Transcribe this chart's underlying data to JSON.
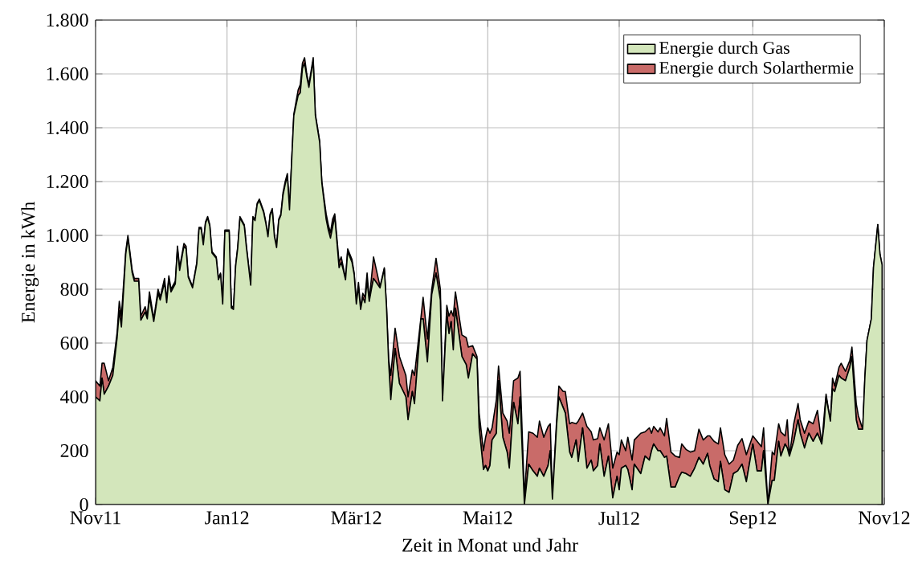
{
  "chart_data": {
    "type": "area",
    "stacked": true,
    "xlabel": "Zeit in Monat und Jahr",
    "ylabel": "Energie in kWh",
    "xlim": [
      "2011-11-01",
      "2012-11-01"
    ],
    "xticks": [
      {
        "value": "2011-11-01",
        "label": "Nov11"
      },
      {
        "value": "2012-01-01",
        "label": "Jan12"
      },
      {
        "value": "2012-03-01",
        "label": "Mär12"
      },
      {
        "value": "2012-05-01",
        "label": "Mai12"
      },
      {
        "value": "2012-07-01",
        "label": "Jul12"
      },
      {
        "value": "2012-09-01",
        "label": "Sep12"
      },
      {
        "value": "2012-11-01",
        "label": "Nov12"
      }
    ],
    "ylim": [
      0,
      1800
    ],
    "yticks": [
      0,
      200,
      400,
      600,
      800,
      {
        "value": 1000,
        "label": "1.000"
      },
      {
        "value": 1200,
        "label": "1.200"
      },
      {
        "value": 1400,
        "label": "1.400"
      },
      {
        "value": 1600,
        "label": "1.600"
      },
      {
        "value": 1800,
        "label": "1.800"
      }
    ],
    "grid": true,
    "legend": "top right",
    "x": [
      "2011-11-01",
      "2011-11-03",
      "2011-11-04",
      "2011-11-05",
      "2011-11-07",
      "2011-11-09",
      "2011-11-11",
      "2011-11-12",
      "2011-11-13",
      "2011-11-15",
      "2011-11-16",
      "2011-11-18",
      "2011-11-19",
      "2011-11-21",
      "2011-11-22",
      "2011-11-24",
      "2011-11-25",
      "2011-11-26",
      "2011-11-28",
      "2011-11-30",
      "2011-12-01",
      "2011-12-03",
      "2011-12-04",
      "2011-12-05",
      "2011-12-06",
      "2011-12-08",
      "2011-12-09",
      "2011-12-10",
      "2011-12-12",
      "2011-12-13",
      "2011-12-14",
      "2011-12-16",
      "2011-12-18",
      "2011-12-19",
      "2011-12-20",
      "2011-12-21",
      "2011-12-22",
      "2011-12-23",
      "2011-12-24",
      "2011-12-25",
      "2011-12-27",
      "2011-12-28",
      "2011-12-29",
      "2011-12-30",
      "2011-12-31",
      "2012-01-02",
      "2012-01-03",
      "2012-01-04",
      "2012-01-05",
      "2012-01-06",
      "2012-01-07",
      "2012-01-09",
      "2012-01-10",
      "2012-01-12",
      "2012-01-13",
      "2012-01-14",
      "2012-01-15",
      "2012-01-16",
      "2012-01-18",
      "2012-01-19",
      "2012-01-20",
      "2012-01-21",
      "2012-01-22",
      "2012-01-23",
      "2012-01-24",
      "2012-01-25",
      "2012-01-26",
      "2012-01-27",
      "2012-01-28",
      "2012-01-29",
      "2012-01-30",
      "2012-01-31",
      "2012-02-01",
      "2012-02-03",
      "2012-02-04",
      "2012-02-05",
      "2012-02-06",
      "2012-02-07",
      "2012-02-08",
      "2012-02-10",
      "2012-02-11",
      "2012-02-13",
      "2012-02-14",
      "2012-02-16",
      "2012-02-17",
      "2012-02-18",
      "2012-02-19",
      "2012-02-20",
      "2012-02-22",
      "2012-02-23",
      "2012-02-24",
      "2012-02-25",
      "2012-02-26",
      "2012-02-28",
      "2012-02-29",
      "2012-03-01",
      "2012-03-02",
      "2012-03-03",
      "2012-03-04",
      "2012-03-05",
      "2012-03-06",
      "2012-03-07",
      "2012-03-08",
      "2012-03-09",
      "2012-03-12",
      "2012-03-14",
      "2012-03-15",
      "2012-03-16",
      "2012-03-17",
      "2012-03-19",
      "2012-03-21",
      "2012-03-24",
      "2012-03-25",
      "2012-03-27",
      "2012-03-28",
      "2012-03-31",
      "2012-04-01",
      "2012-04-03",
      "2012-04-05",
      "2012-04-07",
      "2012-04-09",
      "2012-04-10",
      "2012-04-12",
      "2012-04-13",
      "2012-04-14",
      "2012-04-15",
      "2012-04-16",
      "2012-04-19",
      "2012-04-21",
      "2012-04-22",
      "2012-04-24",
      "2012-04-26",
      "2012-04-27",
      "2012-04-29",
      "2012-04-30",
      "2012-05-01",
      "2012-05-02",
      "2012-05-03",
      "2012-05-05",
      "2012-05-06",
      "2012-05-08",
      "2012-05-10",
      "2012-05-11",
      "2012-05-13",
      "2012-05-15",
      "2012-05-16",
      "2012-05-18",
      "2012-05-20",
      "2012-05-22",
      "2012-05-24",
      "2012-05-25",
      "2012-05-27",
      "2012-05-29",
      "2012-05-30",
      "2012-05-31",
      "2012-06-02",
      "2012-06-03",
      "2012-06-05",
      "2012-06-06",
      "2012-06-08",
      "2012-06-09",
      "2012-06-11",
      "2012-06-12",
      "2012-06-14",
      "2012-06-16",
      "2012-06-18",
      "2012-06-19",
      "2012-06-21",
      "2012-06-22",
      "2012-06-24",
      "2012-06-26",
      "2012-06-28",
      "2012-06-30",
      "2012-07-01",
      "2012-07-02",
      "2012-07-04",
      "2012-07-05",
      "2012-07-07",
      "2012-07-08",
      "2012-07-11",
      "2012-07-13",
      "2012-07-15",
      "2012-07-16",
      "2012-07-17",
      "2012-07-19",
      "2012-07-20",
      "2012-07-22",
      "2012-07-23",
      "2012-07-25",
      "2012-07-27",
      "2012-07-29",
      "2012-07-30",
      "2012-08-01",
      "2012-08-03",
      "2012-08-05",
      "2012-08-07",
      "2012-08-09",
      "2012-08-11",
      "2012-08-12",
      "2012-08-14",
      "2012-08-16",
      "2012-08-17",
      "2012-08-19",
      "2012-08-21",
      "2012-08-23",
      "2012-08-25",
      "2012-08-27",
      "2012-08-29",
      "2012-09-01",
      "2012-09-03",
      "2012-09-05",
      "2012-09-06",
      "2012-09-08",
      "2012-09-10",
      "2012-09-11",
      "2012-09-13",
      "2012-09-14",
      "2012-09-16",
      "2012-09-17",
      "2012-09-18",
      "2012-09-20",
      "2012-09-22",
      "2012-09-23",
      "2012-09-25",
      "2012-09-27",
      "2012-09-29",
      "2012-10-01",
      "2012-10-03",
      "2012-10-04",
      "2012-10-05",
      "2012-10-07",
      "2012-10-08",
      "2012-10-09",
      "2012-10-11",
      "2012-10-12",
      "2012-10-14",
      "2012-10-16",
      "2012-10-17",
      "2012-10-19",
      "2012-10-20",
      "2012-10-22",
      "2012-10-23",
      "2012-10-24",
      "2012-10-26",
      "2012-10-27",
      "2012-10-29",
      "2012-10-30",
      "2012-10-31"
    ],
    "series": [
      {
        "name": "Energie durch Gas",
        "color": "#d3e6bb",
        "values": [
          400,
          385,
          470,
          410,
          440,
          480,
          620,
          720,
          660,
          930,
          990,
          860,
          830,
          830,
          685,
          715,
          690,
          770,
          680,
          785,
          760,
          825,
          750,
          840,
          790,
          820,
          950,
          870,
          960,
          950,
          845,
          805,
          895,
          1025,
          1025,
          965,
          1045,
          1065,
          1035,
          935,
          915,
          835,
          855,
          745,
          1015,
          1015,
          730,
          725,
          885,
          955,
          1065,
          1035,
          955,
          815,
          1065,
          1055,
          1115,
          1130,
          1085,
          1045,
          995,
          1075,
          1095,
          995,
          955,
          1055,
          1075,
          1150,
          1190,
          1220,
          1095,
          1275,
          1445,
          1520,
          1530,
          1620,
          1640,
          1590,
          1550,
          1650,
          1445,
          1345,
          1195,
          1060,
          1020,
          990,
          1030,
          1070,
          880,
          900,
          870,
          835,
          940,
          900,
          855,
          745,
          810,
          725,
          770,
          750,
          830,
          755,
          800,
          840,
          805,
          875,
          735,
          530,
          390,
          580,
          450,
          400,
          315,
          420,
          375,
          690,
          690,
          530,
          780,
          860,
          760,
          385,
          710,
          635,
          680,
          575,
          730,
          550,
          520,
          470,
          560,
          540,
          285,
          130,
          145,
          125,
          145,
          240,
          265,
          460,
          250,
          195,
          135,
          380,
          300,
          400,
          0,
          150,
          125,
          105,
          135,
          105,
          145,
          200,
          20,
          300,
          400,
          360,
          340,
          195,
          175,
          240,
          160,
          285,
          135,
          165,
          125,
          145,
          225,
          105,
          180,
          25,
          105,
          55,
          135,
          145,
          130,
          55,
          150,
          115,
          180,
          165,
          200,
          225,
          200,
          200,
          175,
          180,
          65,
          65,
          105,
          120,
          115,
          105,
          135,
          175,
          150,
          190,
          145,
          95,
          85,
          160,
          55,
          45,
          115,
          125,
          150,
          85,
          225,
          125,
          125,
          200,
          0,
          90,
          90,
          235,
          180,
          225,
          210,
          180,
          235,
          315,
          265,
          210,
          265,
          235,
          265,
          225,
          290,
          400,
          310,
          430,
          420,
          480,
          470,
          460,
          510,
          550,
          315,
          280,
          280,
          470,
          610,
          690,
          880,
          1040,
          930,
          890
        ]
      },
      {
        "name": "Energie durch Solarthermie",
        "color": "#c96b69",
        "values": [
          60,
          55,
          55,
          115,
          20,
          30,
          20,
          35,
          40,
          10,
          10,
          10,
          10,
          10,
          15,
          20,
          10,
          20,
          10,
          15,
          10,
          15,
          10,
          10,
          10,
          10,
          10,
          10,
          10,
          10,
          5,
          5,
          5,
          5,
          5,
          5,
          5,
          5,
          5,
          5,
          5,
          5,
          5,
          5,
          5,
          5,
          10,
          5,
          5,
          5,
          5,
          5,
          5,
          5,
          5,
          5,
          5,
          5,
          5,
          5,
          5,
          5,
          5,
          5,
          5,
          5,
          5,
          10,
          10,
          10,
          5,
          5,
          5,
          20,
          30,
          20,
          20,
          10,
          10,
          10,
          5,
          5,
          5,
          20,
          20,
          20,
          30,
          10,
          20,
          20,
          10,
          5,
          10,
          10,
          5,
          5,
          15,
          5,
          15,
          20,
          30,
          5,
          40,
          80,
          5,
          5,
          5,
          10,
          90,
          75,
          100,
          80,
          85,
          80,
          105,
          5,
          80,
          85,
          20,
          55,
          40,
          5,
          30,
          65,
          40,
          125,
          60,
          80,
          100,
          115,
          30,
          10,
          55,
          70,
          105,
          160,
          120,
          45,
          125,
          55,
          90,
          115,
          130,
          80,
          170,
          95,
          30,
          120,
          140,
          145,
          175,
          145,
          145,
          100,
          10,
          20,
          40,
          60,
          80,
          105,
          130,
          60,
          150,
          55,
          155,
          105,
          115,
          100,
          60,
          135,
          120,
          110,
          90,
          130,
          105,
          55,
          120,
          110,
          90,
          150,
          90,
          120,
          65,
          65,
          70,
          85,
          80,
          140,
          130,
          115,
          70,
          105,
          90,
          90,
          65,
          105,
          90,
          65,
          110,
          140,
          140,
          125,
          130,
          105,
          50,
          95,
          95,
          100,
          30,
          110,
          90,
          85,
          0,
          105,
          95,
          65,
          90,
          30,
          105,
          0,
          65,
          60,
          50,
          55,
          45,
          65,
          85,
          0,
          30,
          10,
          0,
          40,
          20,
          30,
          55,
          35,
          25,
          35,
          60,
          50,
          0,
          0,
          0,
          0,
          0,
          0,
          0,
          0
        ]
      }
    ]
  }
}
